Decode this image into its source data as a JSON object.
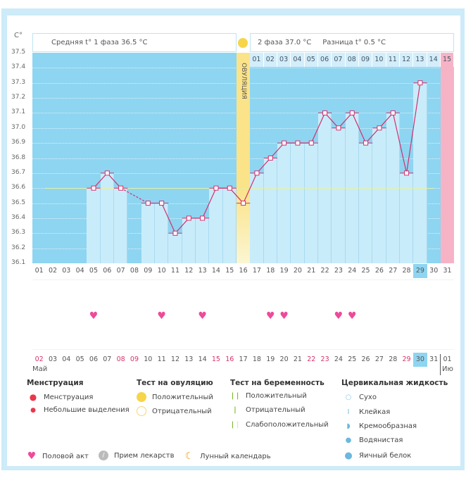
{
  "header": {
    "y_unit": "C°",
    "phase1": "Средняя t° 1 фаза 36.5 °C",
    "phase2": "2 фаза 37.0 °C",
    "diff": "Разница t° 0.5 °C",
    "ovulation_label": "ОВУЛЯЦИЯ"
  },
  "colors": {
    "sky": "#8ed5f1",
    "bar": "#c9ecfa",
    "line": "#d2306e",
    "ovulation": "#fbe38a",
    "period": "#f7b3c6",
    "coverline": "#e6f0a0"
  },
  "chart_data": {
    "type": "line",
    "ylim": [
      36.1,
      37.5
    ],
    "yticks": [
      "37.5",
      "37.4",
      "37.3",
      "37.2",
      "37.1",
      "37.0",
      "36.9",
      "36.8",
      "36.7",
      "36.6",
      "36.5",
      "36.4",
      "36.3",
      "36.2",
      "36.1"
    ],
    "coverline": 36.6,
    "days": [
      "01",
      "02",
      "03",
      "04",
      "05",
      "06",
      "07",
      "08",
      "09",
      "10",
      "11",
      "12",
      "13",
      "14",
      "15",
      "16",
      "17",
      "18",
      "19",
      "20",
      "21",
      "22",
      "23",
      "24",
      "25",
      "26",
      "27",
      "28",
      "29",
      "30",
      "31"
    ],
    "temps": [
      null,
      null,
      null,
      null,
      36.6,
      36.7,
      36.6,
      null,
      36.5,
      36.5,
      36.3,
      36.4,
      36.4,
      36.6,
      36.6,
      36.5,
      36.7,
      36.8,
      36.9,
      36.9,
      36.9,
      37.1,
      37.0,
      37.1,
      36.9,
      37.0,
      37.1,
      36.7,
      37.3,
      null,
      null
    ],
    "ovulation_day": 16,
    "period_day": 31,
    "today_day": 29,
    "cycle_days": [
      "01",
      "02",
      "03",
      "04",
      "05",
      "06",
      "07",
      "08",
      "09",
      "10",
      "11",
      "12",
      "13",
      "14",
      "15"
    ]
  },
  "intercourse_days": [
    5,
    10,
    13,
    18,
    19,
    23,
    24
  ],
  "dates": {
    "labels": [
      "02",
      "03",
      "04",
      "05",
      "06",
      "07",
      "08",
      "09",
      "10",
      "11",
      "12",
      "13",
      "14",
      "15",
      "16",
      "17",
      "18",
      "19",
      "20",
      "21",
      "22",
      "23",
      "24",
      "25",
      "26",
      "27",
      "28",
      "29",
      "30",
      "31",
      "01"
    ],
    "weekend": [
      0,
      6,
      7,
      13,
      14,
      20,
      21,
      27
    ],
    "today_index": 28,
    "month": "Май",
    "next_month": "Ию"
  },
  "legend": {
    "menstruation": {
      "title": "Менструация",
      "items": [
        "Менструация",
        "Небольшие выделения"
      ]
    },
    "ovulation_test": {
      "title": "Тест на овуляцию",
      "items": [
        "Положительный",
        "Отрицательный"
      ]
    },
    "pregnancy_test": {
      "title": "Тест на беременность",
      "items": [
        "Положительный",
        "Отрицательный",
        "Слабоположительный"
      ]
    },
    "cervical": {
      "title": "Цервикальная жидкость",
      "items": [
        "Сухо",
        "Клейкая",
        "Кремообразная",
        "Водянистая",
        "Яичный белок"
      ]
    },
    "other": [
      "Половой акт",
      "Прием лекарств",
      "Лунный календарь"
    ]
  }
}
